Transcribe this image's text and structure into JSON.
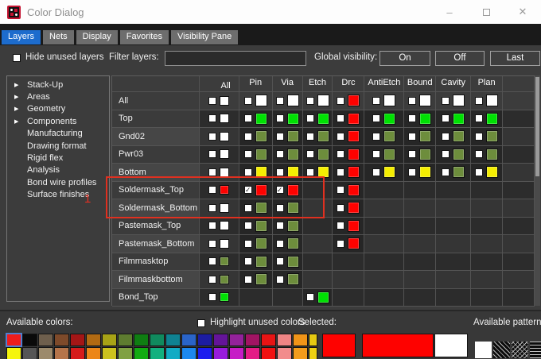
{
  "window": {
    "title": "Color Dialog",
    "minimize_label": "–",
    "close_label": "✕"
  },
  "tabs": [
    {
      "label": "Layers",
      "active": true
    },
    {
      "label": "Nets",
      "active": false
    },
    {
      "label": "Display",
      "active": false
    },
    {
      "label": "Favorites",
      "active": false
    },
    {
      "label": "Visibility Pane",
      "active": false
    }
  ],
  "toolbar": {
    "hide_unused_label": "Hide unused layers",
    "filter_label": "Filter layers:",
    "filter_value": "",
    "global_visibility_label": "Global visibility:",
    "on_label": "On",
    "off_label": "Off",
    "last_label": "Last"
  },
  "sidebar": {
    "items": [
      {
        "label": "Stack-Up",
        "expandable": true
      },
      {
        "label": "Areas",
        "expandable": true
      },
      {
        "label": "Geometry",
        "expandable": true
      },
      {
        "label": "Components",
        "expandable": true
      },
      {
        "label": "Manufacturing",
        "expandable": false
      },
      {
        "label": "Drawing format",
        "expandable": false
      },
      {
        "label": "Rigid flex",
        "expandable": false
      },
      {
        "label": "Analysis",
        "expandable": false
      },
      {
        "label": "Bond wire profiles",
        "expandable": false
      },
      {
        "label": "Surface finishes",
        "expandable": false
      }
    ],
    "annotation_number": "1"
  },
  "grid": {
    "columns": [
      "All",
      "Pin",
      "Via",
      "Etch",
      "Drc",
      "AntiEtch",
      "Bound",
      "Cavity",
      "Plan"
    ],
    "swatch_colors": {
      "white": "#ffffff",
      "red": "#fe0200",
      "green": "#00e103",
      "olive": "#6d8d3c",
      "yellow": "#f5ee02"
    },
    "rows": [
      {
        "label": "All",
        "cells": [
          {
            "color": "white"
          },
          {
            "color": "white"
          },
          {
            "color": "white"
          },
          {
            "color": "white"
          },
          {
            "color": "red"
          },
          {
            "color": "white"
          },
          {
            "color": "white"
          },
          {
            "color": "white"
          },
          {
            "color": "white"
          }
        ]
      },
      {
        "label": "Top",
        "cells": [
          {
            "color": "white"
          },
          {
            "color": "green"
          },
          {
            "color": "green"
          },
          {
            "color": "green"
          },
          {
            "color": "red"
          },
          {
            "color": "green"
          },
          {
            "color": "green"
          },
          {
            "color": "green"
          },
          {
            "color": "green"
          }
        ]
      },
      {
        "label": "Gnd02",
        "cells": [
          {
            "color": "white"
          },
          {
            "color": "olive"
          },
          {
            "color": "olive"
          },
          {
            "color": "olive"
          },
          {
            "color": "red"
          },
          {
            "color": "olive"
          },
          {
            "color": "olive"
          },
          {
            "color": "olive"
          },
          {
            "color": "olive"
          }
        ]
      },
      {
        "label": "Pwr03",
        "cells": [
          {
            "color": "white"
          },
          {
            "color": "olive"
          },
          {
            "color": "olive"
          },
          {
            "color": "olive"
          },
          {
            "color": "red"
          },
          {
            "color": "olive"
          },
          {
            "color": "olive"
          },
          {
            "color": "olive"
          },
          {
            "color": "olive"
          }
        ]
      },
      {
        "label": "Bottom",
        "cells": [
          {
            "color": "white"
          },
          {
            "color": "yellow"
          },
          {
            "color": "yellow"
          },
          {
            "color": "yellow"
          },
          {
            "color": "red"
          },
          {
            "color": "yellow"
          },
          {
            "color": "yellow"
          },
          {
            "color": "olive"
          },
          {
            "color": "yellow"
          }
        ]
      },
      {
        "label": "Soldermask_Top",
        "cells": [
          {
            "color": "red"
          },
          {
            "color": "red",
            "checked": true
          },
          {
            "color": "red",
            "checked": true
          },
          null,
          {
            "color": "red"
          },
          null,
          null,
          null,
          null
        ]
      },
      {
        "label": "Soldermask_Bottom",
        "cells": [
          {
            "color": "white"
          },
          {
            "color": "olive"
          },
          {
            "color": "olive"
          },
          null,
          {
            "color": "red"
          },
          null,
          null,
          null,
          null
        ]
      },
      {
        "label": "Pastemask_Top",
        "cells": [
          {
            "color": "white"
          },
          {
            "color": "olive"
          },
          {
            "color": "olive"
          },
          null,
          {
            "color": "red"
          },
          null,
          null,
          null,
          null
        ]
      },
      {
        "label": "Pastemask_Bottom",
        "cells": [
          {
            "color": "white"
          },
          {
            "color": "olive"
          },
          {
            "color": "olive"
          },
          null,
          {
            "color": "red"
          },
          null,
          null,
          null,
          null
        ]
      },
      {
        "label": "Filmmasktop",
        "cells": [
          {
            "color": "olive"
          },
          {
            "color": "olive"
          },
          {
            "color": "olive"
          },
          null,
          null,
          null,
          null,
          null,
          null
        ]
      },
      {
        "label": "Filmmaskbottom",
        "cells": [
          {
            "color": "olive"
          },
          {
            "color": "olive"
          },
          {
            "color": "olive"
          },
          null,
          null,
          null,
          null,
          null,
          null
        ]
      },
      {
        "label": "Bond_Top",
        "cells": [
          {
            "color": "green"
          },
          null,
          null,
          {
            "color": "green"
          },
          null,
          null,
          null,
          null,
          null
        ]
      }
    ]
  },
  "footer": {
    "available_colors_label": "Available colors:",
    "highlight_label": "Highlight unused colors",
    "selected_label": "Selected:",
    "patterns_label": "Available patterns",
    "palette_rows": [
      [
        "#ee1c1c",
        "#0a0a0a",
        "#6e5f4d",
        "#7e4a2a",
        "#a51616",
        "#b26a12",
        "#a8a316",
        "#5e7c30",
        "#0f7e12",
        "#108a5e",
        "#0f8292",
        "#2a64c8",
        "#1c1ca2",
        "#641499",
        "#93229b",
        "#a11463",
        "#e81414",
        "#ef8585",
        "#f09418",
        "#e5c912"
      ],
      [
        "#f5f50c",
        "#565656",
        "#9c8a6c",
        "#b5744a",
        "#d61c1c",
        "#ec8618",
        "#ccc21e",
        "#80a142",
        "#12ab12",
        "#12b07e",
        "#12abc4",
        "#1c88ee",
        "#1c1cee",
        "#981cdc",
        "#c61cc6",
        "#e41c86",
        "#f21212",
        "#f28c8c",
        "#f39c1c",
        "#eed012"
      ]
    ],
    "selected_swatches": [
      "#fe0200",
      "#fe0200",
      "#ffffff"
    ],
    "patterns": [
      "solid-white",
      "diagonal-lines",
      "chevron",
      "horizontal-lines"
    ]
  }
}
